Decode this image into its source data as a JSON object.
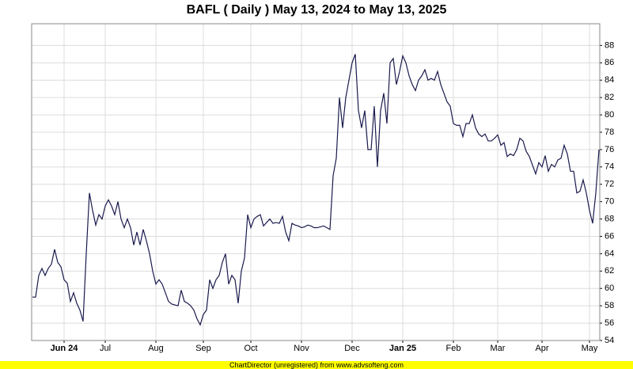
{
  "chart_data": {
    "type": "line",
    "title": "BAFL ( Daily ) May 13, 2024 to May 13, 2025",
    "footer": "ChartDirector (unregistered) from www.advsofteng.com",
    "categories": [
      null,
      null,
      null,
      null,
      null,
      null,
      null,
      null,
      null,
      null,
      "Jun 24",
      null,
      null,
      null,
      null,
      null,
      null,
      null,
      null,
      null,
      null,
      null,
      null,
      "Jul",
      null,
      null,
      null,
      null,
      null,
      null,
      null,
      null,
      null,
      null,
      null,
      null,
      null,
      null,
      null,
      "Aug",
      null,
      null,
      null,
      null,
      null,
      null,
      null,
      null,
      null,
      null,
      null,
      null,
      null,
      null,
      "Sep",
      null,
      null,
      null,
      null,
      null,
      null,
      null,
      null,
      null,
      null,
      null,
      null,
      null,
      null,
      "Oct",
      null,
      null,
      null,
      null,
      null,
      null,
      null,
      null,
      null,
      null,
      null,
      null,
      null,
      null,
      null,
      "Nov",
      null,
      null,
      null,
      null,
      null,
      null,
      null,
      null,
      null,
      null,
      null,
      null,
      null,
      null,
      null,
      "Dec",
      null,
      null,
      null,
      null,
      null,
      null,
      null,
      null,
      null,
      null,
      null,
      null,
      null,
      null,
      null,
      "Jan 25",
      null,
      null,
      null,
      null,
      null,
      null,
      null,
      null,
      null,
      null,
      null,
      null,
      null,
      null,
      null,
      "Feb",
      null,
      null,
      null,
      null,
      null,
      null,
      null,
      null,
      null,
      null,
      null,
      null,
      null,
      "Mar",
      null,
      null,
      null,
      null,
      null,
      null,
      null,
      null,
      null,
      null,
      null,
      null,
      null,
      "Apr",
      null,
      null,
      null,
      null,
      null,
      null,
      null,
      null,
      null,
      null,
      null,
      null,
      null,
      null,
      "May",
      null,
      null,
      null
    ],
    "series": [
      {
        "name": "BAFL",
        "color": "#1a1a4e",
        "values": [
          59,
          59,
          61.5,
          62.3,
          61.5,
          62.3,
          62.8,
          64.5,
          63,
          62.5,
          61,
          60.6,
          58.5,
          59.5,
          58.3,
          57.5,
          56.2,
          64,
          71,
          69,
          67.3,
          68.5,
          68,
          69.5,
          70.2,
          69.5,
          68.5,
          70,
          68,
          67,
          68,
          67,
          65,
          66.5,
          65,
          66.8,
          65.5,
          64,
          62,
          60.5,
          61,
          60.5,
          59.5,
          58.5,
          58.2,
          58.1,
          58,
          59.8,
          58.5,
          58.3,
          58,
          57.5,
          56.5,
          55.8,
          57,
          57.5,
          61,
          60,
          61,
          61.5,
          63,
          64,
          60.5,
          61.5,
          61,
          58.3,
          62,
          63.5,
          68.5,
          67,
          68,
          68.3,
          68.5,
          67.2,
          67.6,
          68,
          67.5,
          67.6,
          67.5,
          68.3,
          66.5,
          65.5,
          67.5,
          67.3,
          67.2,
          67,
          67.1,
          67.3,
          67.2,
          67,
          67,
          67.1,
          67.2,
          67,
          66.8,
          73,
          75,
          82,
          78.5,
          82,
          84,
          86,
          87,
          80.5,
          78.5,
          80.5,
          76,
          76,
          81,
          74,
          80.5,
          82.5,
          79,
          86,
          86.5,
          83.5,
          85,
          86.8,
          86,
          84.5,
          83.5,
          82.8,
          84,
          84.5,
          85.2,
          84,
          84.2,
          84,
          85,
          83.5,
          82.5,
          81.5,
          81,
          79,
          78.8,
          78.8,
          77.5,
          79,
          79,
          80,
          78.5,
          77.8,
          77.5,
          77.8,
          77,
          77,
          77.3,
          77.7,
          76.5,
          76.8,
          75.2,
          75.5,
          75.3,
          76,
          77.3,
          77,
          75.8,
          75.2,
          74.2,
          73.2,
          74.5,
          74,
          75.3,
          73.5,
          74.3,
          74,
          74.8,
          75,
          76.5,
          75.5,
          73.5,
          73.5,
          71,
          71.2,
          72.5,
          71,
          69,
          67.5,
          71,
          76
        ]
      }
    ],
    "ylim": [
      54,
      90.5
    ],
    "yticks": [
      54,
      56,
      58,
      60,
      62,
      64,
      66,
      68,
      70,
      72,
      74,
      76,
      78,
      80,
      82,
      84,
      86,
      88
    ],
    "grid": true
  }
}
